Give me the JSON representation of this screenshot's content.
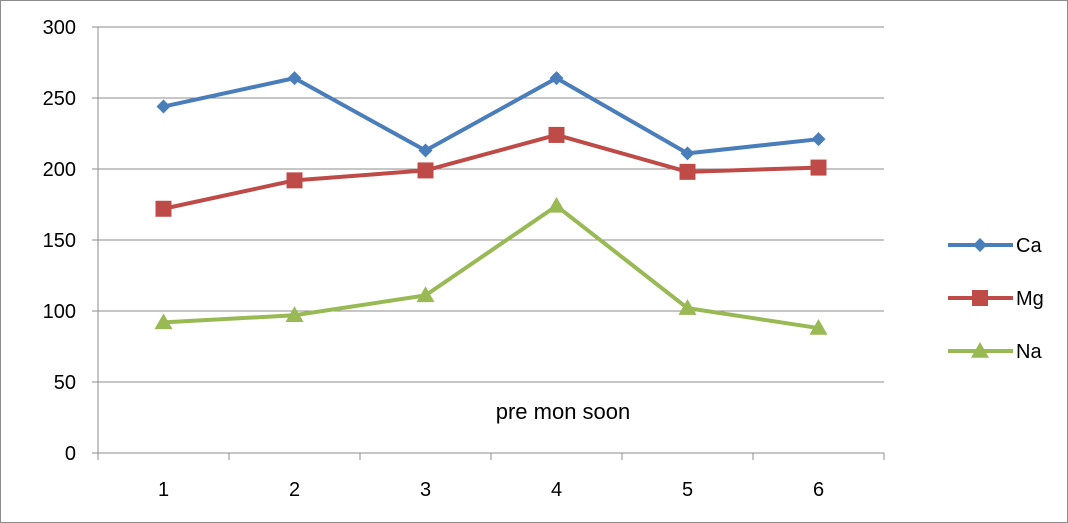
{
  "chart_data": {
    "type": "line",
    "title": "",
    "xlabel": "",
    "ylabel": "",
    "categories": [
      "1",
      "2",
      "3",
      "4",
      "5",
      "6"
    ],
    "ylim": [
      0,
      300
    ],
    "yticks": [
      "0",
      "50",
      "100",
      "150",
      "200",
      "250",
      "300"
    ],
    "grid": true,
    "legend_position": "right",
    "annotation": "pre mon soon",
    "series": [
      {
        "name": "Ca",
        "color": "#4a7ebb",
        "marker": "diamond",
        "values": [
          244,
          264,
          213,
          264,
          211,
          221
        ]
      },
      {
        "name": "Mg",
        "color": "#be4b48",
        "marker": "square",
        "values": [
          172,
          192,
          199,
          224,
          198,
          201
        ]
      },
      {
        "name": "Na",
        "color": "#98b954",
        "marker": "triangle",
        "values": [
          92,
          97,
          111,
          174,
          102,
          88
        ]
      }
    ]
  }
}
